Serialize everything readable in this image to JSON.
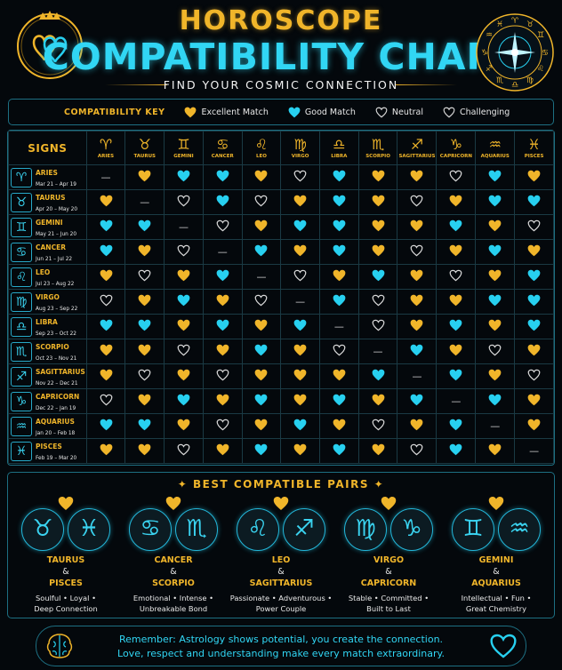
{
  "header": {
    "title_line1": "HOROSCOPE",
    "title_line2": "COMPATIBILITY CHART",
    "subtitle": "FIND YOUR COSMIC CONNECTION",
    "logo_icon": "crown-double-heart-icon",
    "wheel_icon": "zodiac-wheel-icon"
  },
  "key": {
    "title": "COMPATIBILITY KEY",
    "items": [
      {
        "label": "Excellent Match",
        "icon": "heart-filled-gold-icon",
        "color": "#f0b52a"
      },
      {
        "label": "Good Match",
        "icon": "heart-filled-cyan-icon",
        "color": "#27d0f0"
      },
      {
        "label": "Neutral",
        "icon": "heart-outline-icon",
        "color": "#d8d8d8"
      },
      {
        "label": "Challenging",
        "icon": "heart-outline-icon",
        "color": "#d8d8d8"
      }
    ]
  },
  "table": {
    "corner_label": "SIGNS",
    "dash": "—",
    "signs": [
      {
        "name": "ARIES",
        "dates": "Mar 21 – Apr 19",
        "glyph": "♈",
        "short": "ARIES"
      },
      {
        "name": "TAURUS",
        "dates": "Apr 20 – May 20",
        "glyph": "♉",
        "short": "TAURUS"
      },
      {
        "name": "GEMINI",
        "dates": "May 21 – Jun 20",
        "glyph": "♊",
        "short": "GEMINI"
      },
      {
        "name": "CANCER",
        "dates": "Jun 21 – Jul 22",
        "glyph": "♋",
        "short": "CANCER"
      },
      {
        "name": "LEO",
        "dates": "Jul 23 – Aug 22",
        "glyph": "♌",
        "short": "LEO"
      },
      {
        "name": "VIRGO",
        "dates": "Aug 23 – Sep 22",
        "glyph": "♍",
        "short": "VIRGO"
      },
      {
        "name": "LIBRA",
        "dates": "Sep 23 – Oct 22",
        "glyph": "♎",
        "short": "LIBRA"
      },
      {
        "name": "SCORPIO",
        "dates": "Oct 23 – Nov 21",
        "glyph": "♏",
        "short": "SCORPIO"
      },
      {
        "name": "SAGITTARIUS",
        "dates": "Nov 22 – Dec 21",
        "glyph": "♐",
        "short": "SAGITTARIUS"
      },
      {
        "name": "CAPRICORN",
        "dates": "Dec 22 – Jan 19",
        "glyph": "♑",
        "short": "CAPRICORN"
      },
      {
        "name": "AQUARIUS",
        "dates": "Jan 20 – Feb 18",
        "glyph": "♒",
        "short": "AQUARIUS"
      },
      {
        "name": "PISCES",
        "dates": "Feb 19 – Mar 20",
        "glyph": "♓",
        "short": "PISCES"
      }
    ],
    "matrix": [
      "-GCCGNCGGNCG",
      "G-NCNGCGNGCC",
      "CC-NGCCGGCGN",
      "CGN-CGCGNGCG",
      "GNGC-NGCGNGC",
      "NGCGN-CNGGCC",
      "CCGCGC-NGCGC",
      "GGNGCGN-CGNG",
      "GNGNGGGC-CGN",
      "NGCGCGCGC-CG",
      "CCGNGCGNGC-G",
      "GGNGCGCGNCG-"
    ]
  },
  "pairs": {
    "title": "BEST COMPATIBLE PAIRS",
    "items": [
      {
        "sign1": "TAURUS",
        "sign2": "PISCES",
        "g1": "♉",
        "g2": "♓",
        "amp": "&",
        "desc1": "Soulful • Loyal •",
        "desc2": "Deep Connection"
      },
      {
        "sign1": "CANCER",
        "sign2": "SCORPIO",
        "g1": "♋",
        "g2": "♏",
        "amp": "&",
        "desc1": "Emotional • Intense •",
        "desc2": "Unbreakable Bond"
      },
      {
        "sign1": "LEO",
        "sign2": "SAGITTARIUS",
        "g1": "♌",
        "g2": "♐",
        "amp": "&",
        "desc1": "Passionate • Adventurous •",
        "desc2": "Power Couple"
      },
      {
        "sign1": "VIRGO",
        "sign2": "CAPRICORN",
        "g1": "♍",
        "g2": "♑",
        "amp": "&",
        "desc1": "Stable • Committed •",
        "desc2": "Built to Last"
      },
      {
        "sign1": "GEMINI",
        "sign2": "AQUARIUS",
        "g1": "♊",
        "g2": "♒",
        "amp": "&",
        "desc1": "Intellectual • Fun •",
        "desc2": "Great Chemistry"
      }
    ]
  },
  "footer": {
    "line1": "Remember: Astrology shows potential, you create the connection.",
    "line2": "Love, respect and understanding make every match extraordinary.",
    "left_icon": "brain-icon",
    "right_icon": "heart-outline-icon"
  },
  "colors": {
    "gold": "#f0b52a",
    "cyan": "#27d0f0",
    "neutral": "#d8d8d8",
    "border": "#1d6f82"
  }
}
